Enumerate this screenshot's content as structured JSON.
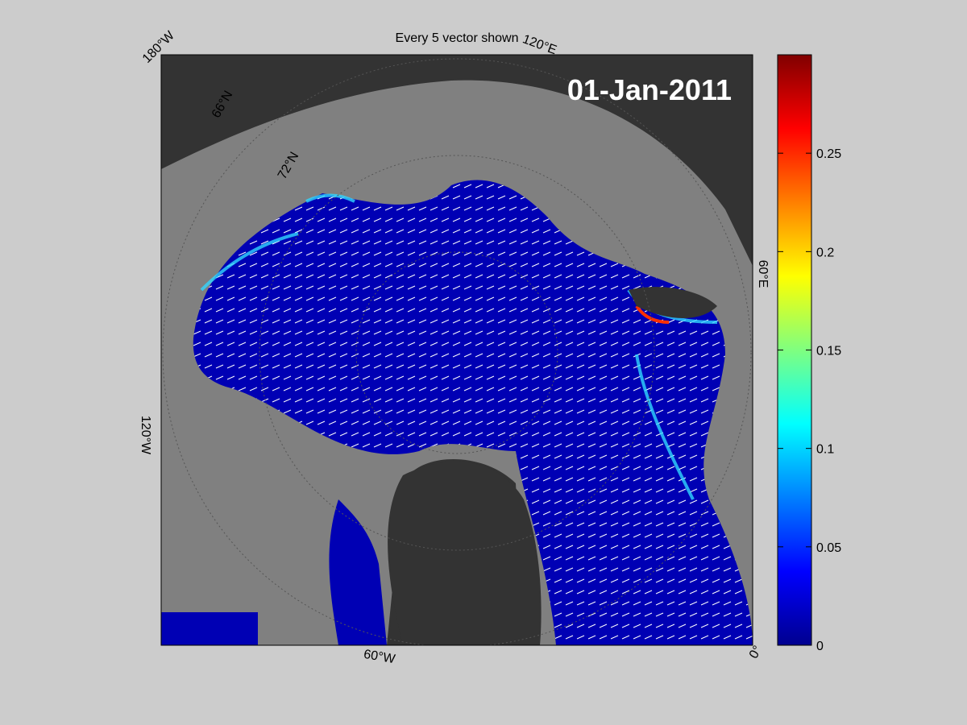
{
  "title": "Every 5 vector shown",
  "date": "01-Jan-2011",
  "longitude_labels": [
    "180°W",
    "120°E",
    "60°E",
    "0°",
    "60°W",
    "120°W"
  ],
  "latitude_labels": [
    "66°N",
    "72°N"
  ],
  "colorbar": {
    "lim": [
      0,
      0.3
    ],
    "ticks": [
      0,
      0.05,
      0.1,
      0.15,
      0.2,
      0.25
    ]
  }
}
